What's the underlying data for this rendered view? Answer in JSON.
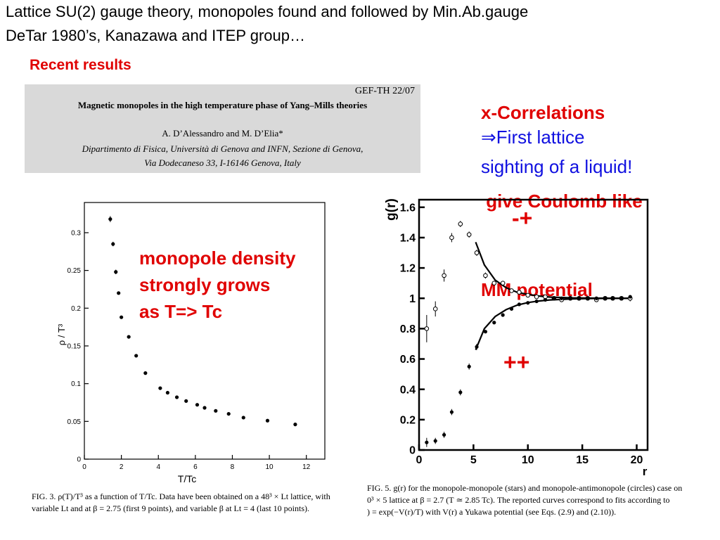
{
  "slide": {
    "title_line1": "Lattice SU(2) gauge theory, monopoles found and followed by Min.Ab.gauge",
    "title_line2": "DeTar 1980’s, Kanazawa and ITEP group…",
    "recent_results": "Recent results",
    "annotations": {
      "correlations": [
        "x-Correlations",
        " give Coulomb like",
        "MM potential"
      ],
      "first_sighting": [
        "⇒First lattice",
        "sighting of a liquid!"
      ],
      "density": [
        "monopole density",
        "strongly grows",
        "as T=> Tc"
      ],
      "minus_plus": "-+",
      "plus_plus": "++"
    },
    "colors": {
      "accent_red": "#e00000",
      "accent_blue": "#1010e0",
      "paper_bg": "#d9d9d9"
    }
  },
  "paper_header": {
    "report_id": "GEF-TH 22/07",
    "title": "Magnetic monopoles in the high temperature phase of Yang–Mills theories",
    "authors": "A. D’Alessandro and M. D’Elia*",
    "affiliation_line1": "Dipartimento di Fisica, Università di Genova and INFN, Sezione di Genova,",
    "affiliation_line2": "Via Dodecaneso 33, I-16146 Genova, Italy"
  },
  "captions": {
    "fig3_line1": "FIG. 3. ρ(T)/T³ as a function of T/Tc. Data have been obtained on a 48³ × Lt lattice, with",
    "fig3_line2": "variable Lt and at β = 2.75 (first 9 points), and variable β at Lt = 4 (last 10 points).",
    "fig5_line1": "FIG. 5. g(r) for the monopole-monopole (stars) and monopole-antimonopole (circles) case on",
    "fig5_line2": "0³ × 5 lattice at β = 2.7 (T ≃ 2.85 Tc). The reported curves correspond to fits according to",
    "fig5_line3": ") = exp(−V(r)/T) with V(r) a Yukawa potential (see Eqs. (2.9) and (2.10))."
  },
  "chart_data": [
    {
      "type": "scatter",
      "xlabel": "T/Tc",
      "ylabel": "ρ / T³",
      "xlim": [
        0,
        13
      ],
      "ylim": [
        0,
        0.34
      ],
      "xticks": [
        "0",
        "2",
        "4",
        "6",
        "8",
        "10",
        "12"
      ],
      "yticks": [
        "0",
        "0.05",
        "0.1",
        "0.15",
        "0.2",
        "0.25",
        "0.3"
      ],
      "grid": false,
      "series": [
        {
          "x": [
            1.4,
            1.55,
            1.7,
            1.85,
            2.0,
            2.4,
            2.8,
            3.3,
            4.1,
            4.5,
            5.0,
            5.5,
            6.1,
            6.5,
            7.1,
            7.8,
            8.6,
            9.9,
            11.4
          ],
          "y": [
            0.318,
            0.285,
            0.248,
            0.22,
            0.188,
            0.162,
            0.137,
            0.114,
            0.094,
            0.088,
            0.082,
            0.077,
            0.072,
            0.068,
            0.064,
            0.06,
            0.055,
            0.051,
            0.046
          ],
          "err": [
            0.004,
            0.003,
            0.003,
            0.002,
            0.002,
            0.002,
            0.002,
            0.002,
            0.001,
            0.001,
            0.001,
            0.001,
            0.001,
            0.001,
            0.001,
            0.001,
            0.001,
            0.001,
            0.001
          ]
        }
      ]
    },
    {
      "type": "scatter",
      "xlabel": "r",
      "ylabel": "g(r)",
      "xlim": [
        0,
        21
      ],
      "ylim": [
        0,
        1.65
      ],
      "xticks": [
        "0",
        "5",
        "10",
        "15",
        "20"
      ],
      "yticks": [
        "0",
        "0.2",
        "0.4",
        "0.6",
        "0.8",
        "1",
        "1.2",
        "1.4",
        "1.6"
      ],
      "grid": false,
      "series": [
        {
          "marker": "open-circle",
          "x": [
            0.7,
            1.5,
            2.3,
            3.0,
            3.8,
            4.6,
            5.3,
            6.1,
            6.9,
            7.7,
            8.5,
            9.2,
            10.0,
            10.8,
            11.6,
            12.4,
            13.1,
            13.9,
            14.7,
            15.5,
            16.3,
            17.1,
            17.8,
            18.6,
            19.4
          ],
          "y": [
            0.8,
            0.93,
            1.15,
            1.4,
            1.49,
            1.42,
            1.3,
            1.15,
            1.1,
            1.1,
            1.05,
            1.04,
            1.02,
            1.01,
            1.01,
            1.0,
            0.99,
            1.0,
            1.0,
            1.0,
            0.99,
            1.0,
            1.0,
            1.0,
            1.0
          ],
          "err": [
            0.09,
            0.05,
            0.04,
            0.03,
            0.02,
            0.02,
            0.02,
            0.02,
            0.01,
            0.01,
            0.01,
            0.01,
            0.01,
            0.01,
            0.01,
            0.01,
            0.01,
            0.01,
            0.01,
            0.01,
            0.01,
            0.01,
            0.01,
            0.01,
            0.02
          ]
        },
        {
          "marker": "filled-star",
          "x": [
            0.7,
            1.5,
            2.3,
            3.0,
            3.8,
            4.6,
            5.3,
            6.1,
            6.9,
            7.7,
            8.5,
            9.2,
            10.0,
            10.8,
            11.6,
            12.4,
            13.1,
            13.9,
            14.7,
            15.5,
            16.3,
            17.1,
            17.8,
            18.6,
            19.4
          ],
          "y": [
            0.05,
            0.06,
            0.1,
            0.25,
            0.38,
            0.55,
            0.68,
            0.78,
            0.84,
            0.89,
            0.93,
            0.96,
            0.97,
            0.98,
            0.99,
            1.0,
            1.0,
            1.0,
            1.0,
            1.0,
            1.0,
            1.0,
            1.0,
            1.0,
            1.01
          ],
          "err": [
            0.03,
            0.02,
            0.02,
            0.02,
            0.02,
            0.02,
            0.02,
            0.01,
            0.01,
            0.01,
            0.01,
            0.01,
            0.01,
            0.01,
            0.01,
            0.01,
            0.01,
            0.01,
            0.01,
            0.01,
            0.01,
            0.01,
            0.01,
            0.01,
            0.01
          ]
        }
      ],
      "fits": [
        {
          "from": 5.2,
          "to": 19.6,
          "x": [
            5.2,
            6,
            7,
            8,
            9,
            10,
            11,
            12,
            14,
            16,
            19.6
          ],
          "y": [
            1.37,
            1.22,
            1.12,
            1.07,
            1.04,
            1.025,
            1.015,
            1.008,
            1.003,
            1.001,
            1.0
          ]
        },
        {
          "from": 5.2,
          "to": 19.6,
          "x": [
            5.2,
            6,
            7,
            8,
            9,
            10,
            11,
            12,
            14,
            16,
            19.6
          ],
          "y": [
            0.66,
            0.8,
            0.88,
            0.925,
            0.955,
            0.972,
            0.982,
            0.989,
            0.996,
            0.999,
            1.0
          ]
        }
      ]
    }
  ]
}
